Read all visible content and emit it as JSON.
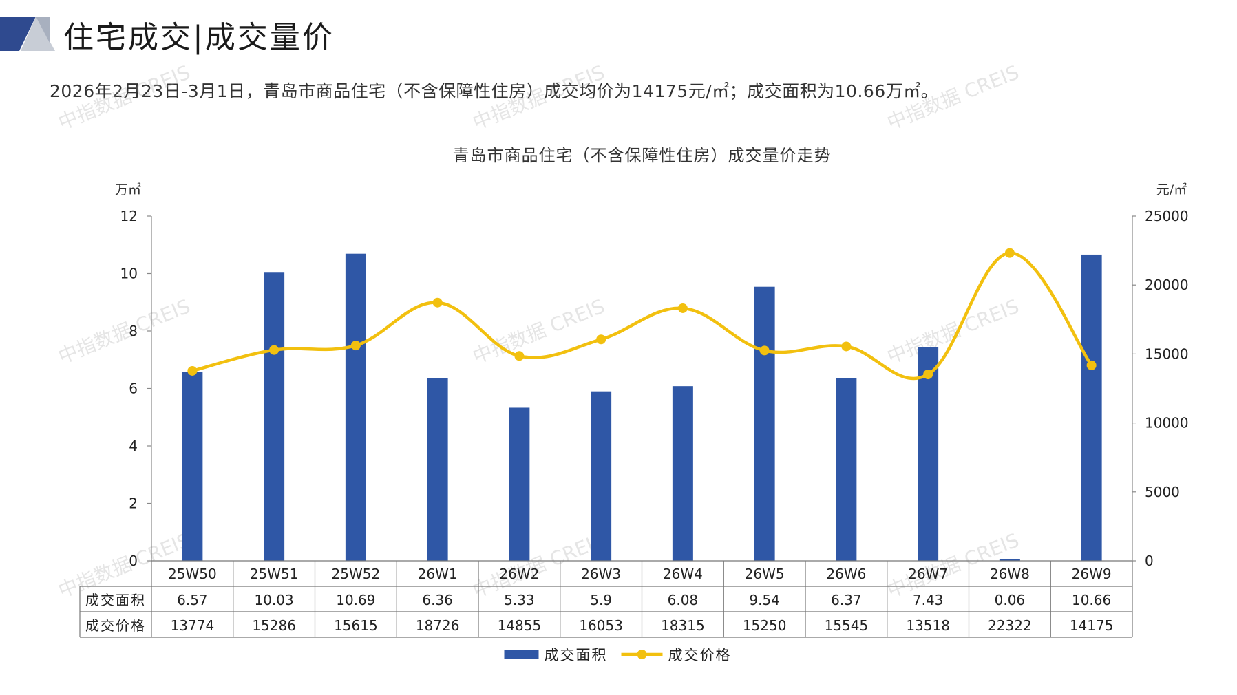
{
  "header": {
    "title": "住宅成交|成交量价",
    "summary": "2026年2月23日-3月1日，青岛市商品住宅（不含保障性住房）成交均价为14175元/㎡；成交面积为10.66万㎡。"
  },
  "watermark": "中指数据 CREIS",
  "colors": {
    "bar": "#2f57a6",
    "line": "#f2c00f",
    "header_dark": "#2f4a8f",
    "header_light": "#c8cdd6"
  },
  "chart_data": {
    "type": "bar",
    "title": "青岛市商品住宅（不含保障性住房）成交量价走势",
    "categories": [
      "25W50",
      "25W51",
      "25W52",
      "26W1",
      "26W2",
      "26W3",
      "26W4",
      "26W5",
      "26W6",
      "26W7",
      "26W8",
      "26W9"
    ],
    "series": [
      {
        "name": "成交面积",
        "type": "bar",
        "axis": "left",
        "values": [
          6.57,
          10.03,
          10.69,
          6.36,
          5.33,
          5.9,
          6.08,
          9.54,
          6.37,
          7.43,
          0.06,
          10.66
        ],
        "labels": [
          "6.57",
          "10.03",
          "10.69",
          "6.36",
          "5.33",
          "5.9",
          "6.08",
          "9.54",
          "6.37",
          "7.43",
          "0.06",
          "10.66"
        ]
      },
      {
        "name": "成交价格",
        "type": "line",
        "axis": "right",
        "values": [
          13774,
          15286,
          15615,
          18726,
          14855,
          16053,
          18315,
          15250,
          15545,
          13518,
          22322,
          14175
        ],
        "labels": [
          "13774",
          "15286",
          "15615",
          "18726",
          "14855",
          "16053",
          "18315",
          "15250",
          "15545",
          "13518",
          "22322",
          "14175"
        ]
      }
    ],
    "y_left": {
      "unit": "万㎡",
      "min": 0,
      "max": 12,
      "ticks": [
        0,
        2,
        4,
        6,
        8,
        10,
        12
      ]
    },
    "y_right": {
      "unit": "元/㎡",
      "min": 0,
      "max": 25000,
      "ticks": [
        0,
        5000,
        10000,
        15000,
        20000,
        25000
      ]
    },
    "legend": {
      "position": "bottom-center",
      "items": [
        "成交面积",
        "成交价格"
      ]
    },
    "grid": false,
    "data_table": true
  }
}
